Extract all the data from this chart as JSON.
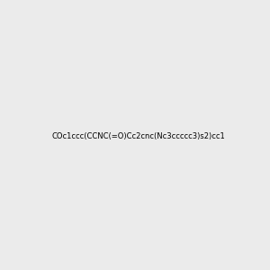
{
  "smiles": "COc1ccc(CCNC(=O)Cc2cnc(Nc3ccccc3)s2)cc1",
  "bg_color": "#ebebeb",
  "fig_size": [
    3.0,
    3.0
  ],
  "dpi": 100,
  "img_size": [
    300,
    300
  ]
}
